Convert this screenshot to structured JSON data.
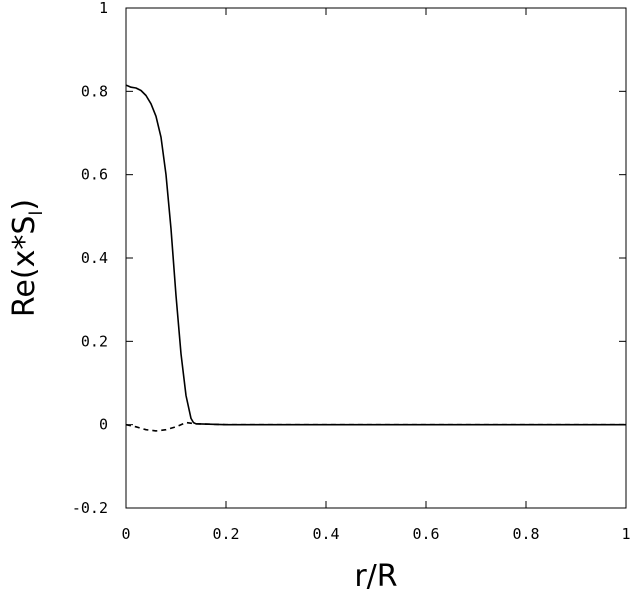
{
  "chart_data": {
    "type": "line",
    "xlabel": "r/R",
    "ylabel_main": "Re(x*S",
    "ylabel_sub": "l",
    "ylabel_close": ")",
    "xlim": [
      0,
      1
    ],
    "ylim": [
      -0.2,
      1
    ],
    "x_ticks": [
      0,
      0.2,
      0.4,
      0.6,
      0.8,
      1
    ],
    "x_tick_labels": [
      "0",
      "0.2",
      "0.4",
      "0.6",
      "0.8",
      "1"
    ],
    "y_ticks": [
      -0.2,
      0,
      0.2,
      0.4,
      0.6,
      0.8,
      1
    ],
    "y_tick_labels": [
      "-0.2",
      "0",
      "0.2",
      "0.4",
      "0.6",
      "0.8",
      "1"
    ],
    "grid": false,
    "legend": "none",
    "series": [
      {
        "style": "solid",
        "color": "#000000",
        "x": [
          0,
          0.01,
          0.02,
          0.03,
          0.04,
          0.05,
          0.06,
          0.07,
          0.08,
          0.09,
          0.1,
          0.11,
          0.12,
          0.13,
          0.135,
          0.14,
          0.2,
          0.3,
          0.4,
          0.5,
          0.6,
          0.7,
          0.8,
          0.9,
          1.0
        ],
        "y": [
          0.815,
          0.81,
          0.808,
          0.802,
          0.79,
          0.77,
          0.74,
          0.69,
          0.6,
          0.47,
          0.31,
          0.17,
          0.07,
          0.015,
          0.005,
          0.002,
          0.0,
          0.0,
          0.0,
          0.0,
          0.0,
          0.0,
          0.0,
          0.0,
          0.0
        ]
      },
      {
        "style": "dashed",
        "color": "#000000",
        "x": [
          0,
          0.02,
          0.04,
          0.06,
          0.08,
          0.1,
          0.12,
          0.14,
          0.2,
          0.4,
          0.6,
          0.8,
          1.0
        ],
        "y": [
          0.0,
          -0.005,
          -0.012,
          -0.015,
          -0.012,
          -0.005,
          0.005,
          0.002,
          0.0,
          0.0,
          0.0,
          0.0,
          0.0
        ]
      }
    ]
  }
}
